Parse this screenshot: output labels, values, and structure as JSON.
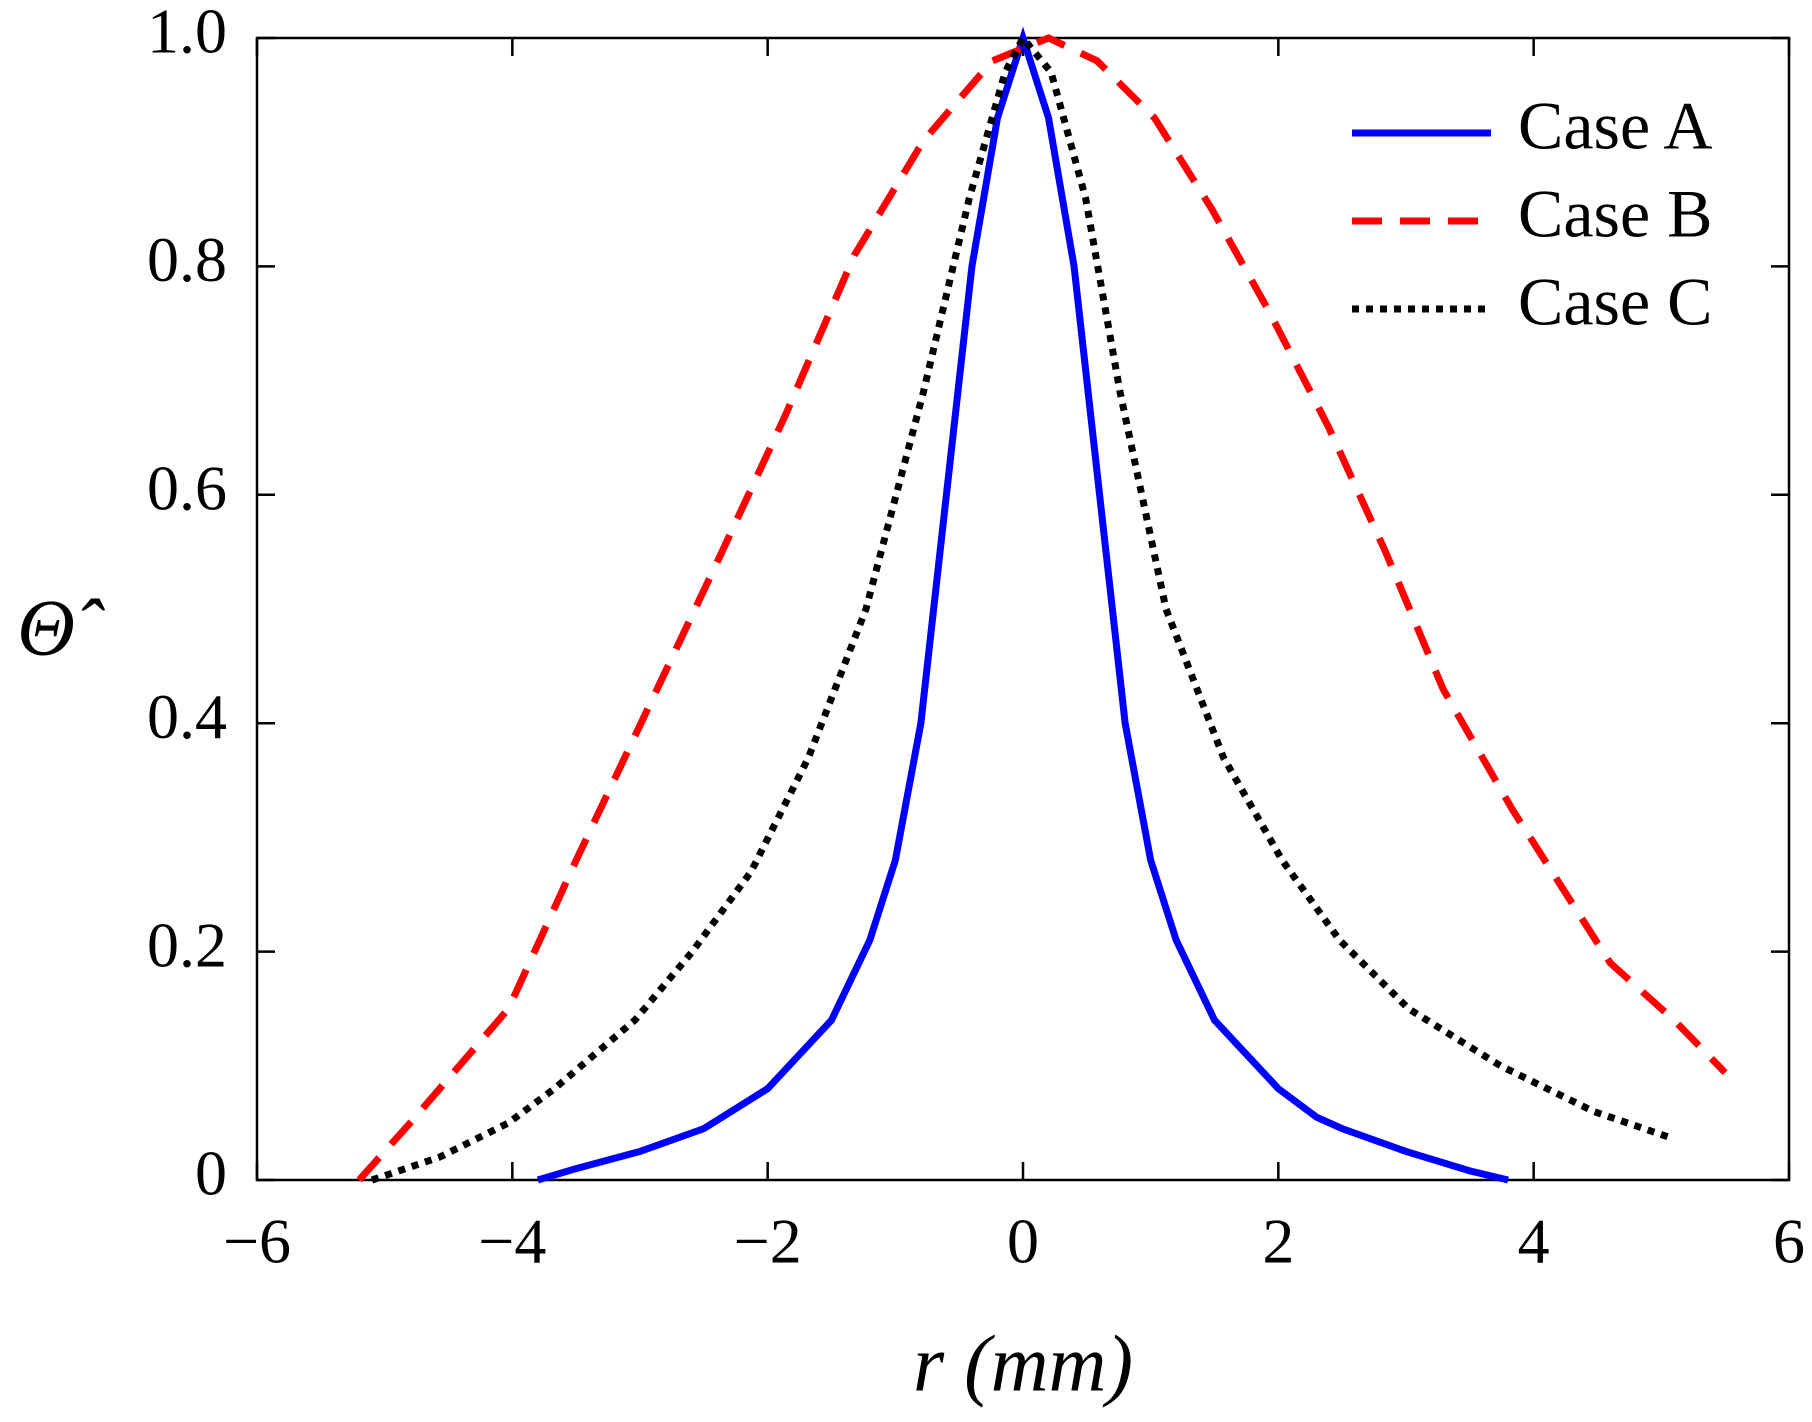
{
  "chart_data": {
    "type": "line",
    "xlabel": "r (mm)",
    "ylabel": "Θ̂",
    "xlim": [
      -6,
      6
    ],
    "xticks": [
      {
        "value": -6,
        "label": "−6"
      },
      {
        "value": -4,
        "label": "−4"
      },
      {
        "value": -2,
        "label": "−2"
      },
      0,
      2,
      4,
      6
    ],
    "ylim": [
      0,
      1
    ],
    "yticks": [
      0,
      0.2,
      0.4,
      0.6,
      0.8,
      {
        "value": 1,
        "label": "1.0"
      }
    ],
    "legend": "upper right",
    "series": [
      {
        "name": "Case A",
        "color": "#0000ff",
        "style": "solid",
        "x": [
          -3.8,
          -3.5,
          -3,
          -2.5,
          -2,
          -1.5,
          -1.2,
          -1,
          -0.8,
          -0.6,
          -0.4,
          -0.2,
          0,
          0.2,
          0.4,
          0.6,
          0.8,
          1,
          1.2,
          1.5,
          2,
          2.3,
          2.5,
          3,
          3.5,
          3.8
        ],
        "values": [
          0,
          0.01,
          0.025,
          0.045,
          0.08,
          0.14,
          0.21,
          0.28,
          0.4,
          0.6,
          0.8,
          0.93,
          1.0,
          0.93,
          0.8,
          0.6,
          0.4,
          0.28,
          0.21,
          0.14,
          0.08,
          0.055,
          0.045,
          0.025,
          0.008,
          0
        ]
      },
      {
        "name": "Case B",
        "color": "#ff0000",
        "style": "dashed",
        "x": [
          -5.2,
          -4.8,
          -4.03,
          -3.5,
          -2.95,
          -2.4,
          -1.86,
          -1.32,
          -0.78,
          -0.24,
          0.2,
          0.58,
          1.03,
          1.48,
          1.93,
          2.39,
          2.84,
          3.29,
          3.83,
          4.2,
          4.6,
          5.1,
          5.5
        ],
        "values": [
          0,
          0.05,
          0.15,
          0.28,
          0.41,
          0.54,
          0.67,
          0.81,
          0.91,
          0.98,
          1.0,
          0.98,
          0.93,
          0.85,
          0.76,
          0.66,
          0.55,
          0.43,
          0.325,
          0.26,
          0.19,
          0.14,
          0.094
        ]
      },
      {
        "name": "Case C",
        "color": "#000000",
        "style": "dotted",
        "x": [
          -5.1,
          -4.57,
          -4.03,
          -3.67,
          -3.04,
          -2.59,
          -2.13,
          -1.68,
          -1.23,
          -0.78,
          -0.42,
          -0.14,
          0,
          0.22,
          0.49,
          0.76,
          1.12,
          1.57,
          2.03,
          2.48,
          3.02,
          3.74,
          4.47,
          5.1
        ],
        "values": [
          0,
          0.02,
          0.05,
          0.08,
          0.14,
          0.2,
          0.27,
          0.37,
          0.5,
          0.69,
          0.86,
          0.97,
          1.0,
          0.97,
          0.86,
          0.69,
          0.5,
          0.37,
          0.28,
          0.21,
          0.15,
          0.1,
          0.06,
          0.036
        ]
      }
    ]
  }
}
